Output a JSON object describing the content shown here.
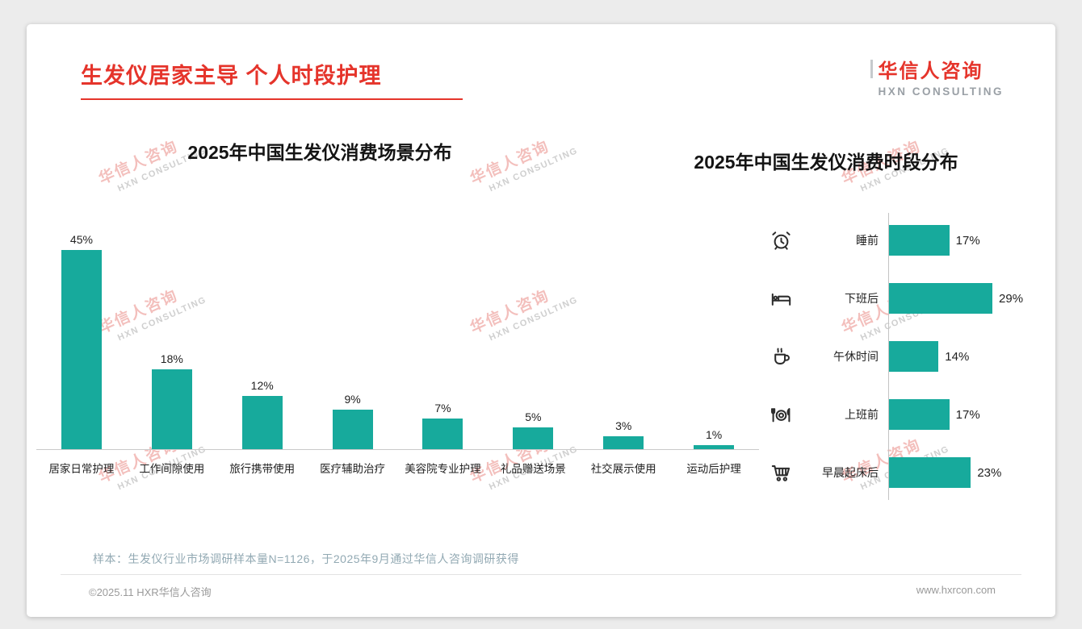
{
  "page": {
    "title": "生发仪居家主导 个人时段护理",
    "logo": {
      "cn": "华信人咨询",
      "en": "HXN CONSULTING"
    },
    "watermark": {
      "cn": "华信人咨询",
      "en": "HXN CONSULTING"
    },
    "footnote": "样本：生发仪行业市场调研样本量N=1126，于2025年9月通过华信人咨询调研获得",
    "footer": {
      "left": "©2025.11 HXR华信人咨询",
      "right": "www.hxrcon.com"
    }
  },
  "colors": {
    "accent_red": "#E5342B",
    "teal": "#17AA9C",
    "axis": "#C8C8C8"
  },
  "chart_data": [
    {
      "type": "bar",
      "orientation": "vertical",
      "title": "2025年中国生发仪消费场景分布",
      "categories": [
        "居家日常护理",
        "工作间隙使用",
        "旅行携带使用",
        "医疗辅助治疗",
        "美容院专业护理",
        "礼品赠送场景",
        "社交展示使用",
        "运动后护理"
      ],
      "values": [
        45,
        18,
        12,
        9,
        7,
        5,
        3,
        1
      ],
      "data_labels": [
        "45%",
        "18%",
        "12%",
        "9%",
        "7%",
        "5%",
        "3%",
        "1%"
      ],
      "unit": "%",
      "ylim": [
        0,
        50
      ],
      "bar_color": "#17AA9C",
      "grid": false,
      "legend": false
    },
    {
      "type": "bar",
      "orientation": "horizontal",
      "title": "2025年中国生发仪消费时段分布",
      "categories": [
        "睡前",
        "下班后",
        "午休时间",
        "上班前",
        "早晨起床后"
      ],
      "values": [
        17,
        29,
        14,
        17,
        23
      ],
      "data_labels": [
        "17%",
        "29%",
        "14%",
        "17%",
        "23%"
      ],
      "icons": [
        "alarm-clock-icon",
        "bed-icon",
        "coffee-icon",
        "dining-icon",
        "cart-icon"
      ],
      "unit": "%",
      "xlim": [
        0,
        32
      ],
      "bar_color": "#17AA9C",
      "grid": false,
      "legend": false
    }
  ]
}
